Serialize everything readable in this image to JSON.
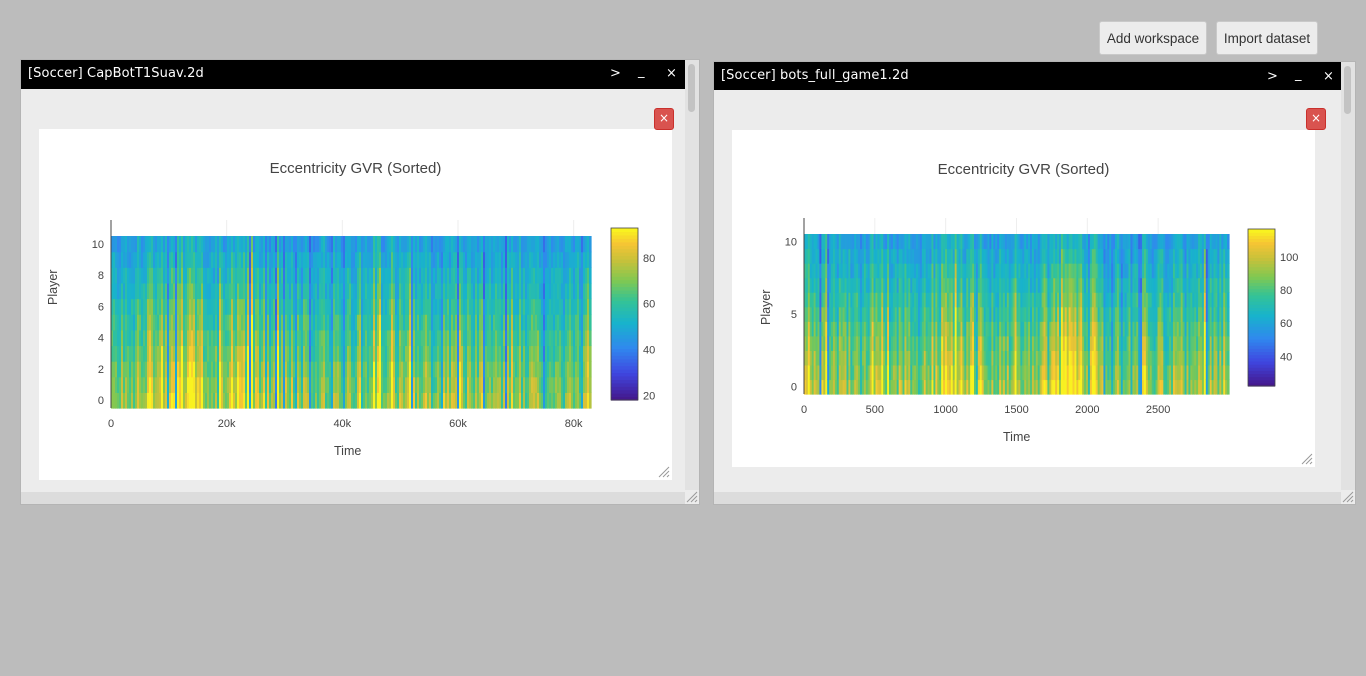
{
  "toolbar": {
    "add_workspace_label": "Add workspace",
    "import_dataset_label": "Import dataset"
  },
  "windows": [
    {
      "title": "[Soccer] CapBotT1Suav.2d",
      "controls": {
        "expand": ">",
        "minimize": "_",
        "close": "×"
      },
      "plot_close": "×",
      "chart_data": {
        "type": "heatmap",
        "title": "Eccentricity GVR (Sorted)",
        "xlabel": "Time",
        "ylabel": "Player",
        "x_range": [
          0,
          83000
        ],
        "y_range": [
          -0.5,
          10.5
        ],
        "x_ticks": [
          0,
          20000,
          40000,
          60000,
          80000
        ],
        "x_tick_labels": [
          "0",
          "20k",
          "40k",
          "60k",
          "80k"
        ],
        "y_ticks": [
          0,
          2,
          4,
          6,
          8,
          10
        ],
        "y_tick_labels": [
          "0",
          "2",
          "4",
          "6",
          "8",
          "10"
        ],
        "rows": 11,
        "colorscale": "viridis-like (indigo-blue-teal-green-yellow)",
        "colorbar": {
          "range": [
            18,
            93
          ],
          "ticks": [
            20,
            40,
            60,
            80
          ],
          "tick_labels": [
            "20",
            "40",
            "60",
            "80"
          ]
        },
        "columns": 240,
        "seed": 7,
        "hot_regions": [
          [
            0.07,
            0.19
          ],
          [
            0.23,
            0.3
          ]
        ],
        "grid": true
      }
    },
    {
      "title": "[Soccer] bots_full_game1.2d",
      "controls": {
        "expand": ">",
        "minimize": "_",
        "close": "×"
      },
      "plot_close": "×",
      "chart_data": {
        "type": "heatmap",
        "title": "Eccentricity GVR (Sorted)",
        "xlabel": "Time",
        "ylabel": "Player",
        "x_range": [
          0,
          3000
        ],
        "y_range": [
          -0.5,
          10.5
        ],
        "x_ticks": [
          0,
          500,
          1000,
          1500,
          2000,
          2500
        ],
        "x_tick_labels": [
          "0",
          "500",
          "1000",
          "1500",
          "2000",
          "2500"
        ],
        "y_ticks": [
          0,
          5,
          10
        ],
        "y_tick_labels": [
          "0",
          "5",
          "10"
        ],
        "rows": 11,
        "colorscale": "viridis-like (indigo-blue-teal-green-yellow)",
        "colorbar": {
          "range": [
            22,
            117
          ],
          "ticks": [
            40,
            60,
            80,
            100
          ],
          "tick_labels": [
            "40",
            "60",
            "80",
            "100"
          ]
        },
        "columns": 220,
        "seed": 19,
        "hot_regions": [
          [
            0.3,
            0.42
          ],
          [
            0.55,
            0.7
          ]
        ],
        "grid": true
      }
    }
  ]
}
